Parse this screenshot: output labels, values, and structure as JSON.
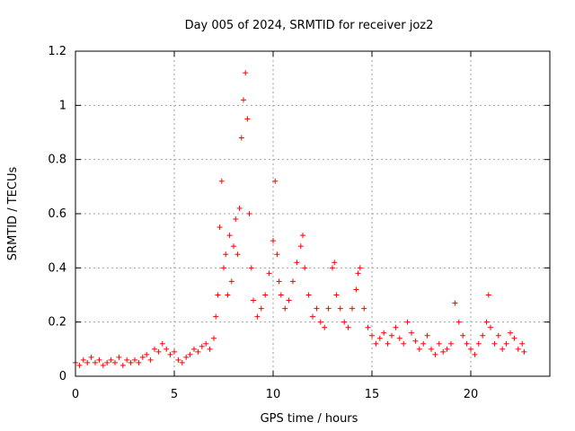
{
  "chart_data": {
    "type": "scatter",
    "title": "Day 005 of 2024, SRMTID for receiver joz2",
    "xlabel": "GPS time / hours",
    "ylabel": "SRMTID / TECUs",
    "xlim": [
      0,
      24
    ],
    "ylim": [
      0,
      1.2
    ],
    "x_ticks": [
      0,
      5,
      10,
      15,
      20
    ],
    "x_tick_labels": [
      "0",
      "5",
      "10",
      "15",
      "20"
    ],
    "y_ticks": [
      0,
      0.2,
      0.4,
      0.6,
      0.8,
      1.0,
      1.2
    ],
    "y_tick_labels": [
      "0",
      "0.2",
      "0.4",
      "0.6",
      "0.8",
      "1",
      "1.2"
    ],
    "grid": true,
    "marker": "plus",
    "series": [
      {
        "name": "SRMTID",
        "color": "#ff0000",
        "x": [
          0.0,
          0.2,
          0.4,
          0.6,
          0.8,
          1.0,
          1.2,
          1.4,
          1.6,
          1.8,
          2.0,
          2.2,
          2.4,
          2.6,
          2.8,
          3.0,
          3.2,
          3.4,
          3.6,
          3.8,
          4.0,
          4.2,
          4.4,
          4.6,
          4.8,
          5.0,
          5.2,
          5.4,
          5.6,
          5.8,
          6.0,
          6.2,
          6.4,
          6.6,
          6.8,
          7.0,
          7.1,
          7.2,
          7.3,
          7.4,
          7.5,
          7.6,
          7.7,
          7.8,
          7.9,
          8.0,
          8.1,
          8.2,
          8.3,
          8.4,
          8.5,
          8.6,
          8.7,
          8.8,
          8.9,
          9.0,
          9.2,
          9.4,
          9.6,
          9.8,
          10.0,
          10.1,
          10.2,
          10.3,
          10.4,
          10.6,
          10.8,
          11.0,
          11.2,
          11.4,
          11.5,
          11.6,
          11.8,
          12.0,
          12.2,
          12.4,
          12.6,
          12.8,
          13.0,
          13.1,
          13.2,
          13.4,
          13.6,
          13.8,
          14.0,
          14.2,
          14.3,
          14.4,
          14.6,
          14.8,
          15.0,
          15.2,
          15.4,
          15.6,
          15.8,
          16.0,
          16.2,
          16.4,
          16.6,
          16.8,
          17.0,
          17.2,
          17.4,
          17.6,
          17.8,
          18.0,
          18.2,
          18.4,
          18.6,
          18.8,
          19.0,
          19.2,
          19.4,
          19.6,
          19.8,
          20.0,
          20.2,
          20.4,
          20.6,
          20.8,
          20.9,
          21.0,
          21.2,
          21.4,
          21.6,
          21.8,
          22.0,
          22.2,
          22.4,
          22.6,
          22.7
        ],
        "y": [
          0.05,
          0.04,
          0.06,
          0.05,
          0.07,
          0.05,
          0.06,
          0.04,
          0.05,
          0.06,
          0.05,
          0.07,
          0.04,
          0.06,
          0.05,
          0.06,
          0.05,
          0.07,
          0.08,
          0.06,
          0.1,
          0.09,
          0.12,
          0.1,
          0.08,
          0.09,
          0.06,
          0.05,
          0.07,
          0.08,
          0.1,
          0.09,
          0.11,
          0.12,
          0.1,
          0.14,
          0.22,
          0.3,
          0.55,
          0.72,
          0.4,
          0.45,
          0.3,
          0.52,
          0.35,
          0.48,
          0.58,
          0.45,
          0.62,
          0.88,
          1.02,
          1.12,
          0.95,
          0.6,
          0.4,
          0.28,
          0.22,
          0.25,
          0.3,
          0.38,
          0.5,
          0.72,
          0.45,
          0.35,
          0.3,
          0.25,
          0.28,
          0.35,
          0.42,
          0.48,
          0.52,
          0.4,
          0.3,
          0.22,
          0.25,
          0.2,
          0.18,
          0.25,
          0.4,
          0.42,
          0.3,
          0.25,
          0.2,
          0.18,
          0.25,
          0.32,
          0.38,
          0.4,
          0.25,
          0.18,
          0.15,
          0.12,
          0.14,
          0.16,
          0.12,
          0.15,
          0.18,
          0.14,
          0.12,
          0.2,
          0.16,
          0.13,
          0.1,
          0.12,
          0.15,
          0.1,
          0.08,
          0.12,
          0.09,
          0.1,
          0.12,
          0.27,
          0.2,
          0.15,
          0.12,
          0.1,
          0.08,
          0.12,
          0.15,
          0.2,
          0.3,
          0.18,
          0.12,
          0.15,
          0.1,
          0.12,
          0.16,
          0.14,
          0.1,
          0.12,
          0.09
        ]
      }
    ]
  }
}
